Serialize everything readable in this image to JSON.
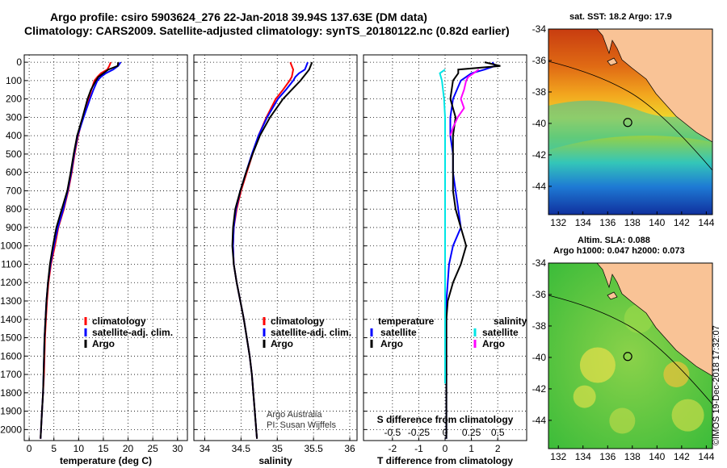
{
  "titles": {
    "line1": "Argo profile: csiro 5903624_276 22-Jan-2018 39.94S 137.63E (DM data)",
    "line2": "Climatology: CARS2009. Satellite-adjusted climatology: synTS_20180122.nc (0.82d earlier)"
  },
  "credits": {
    "line1": "Argo Australia",
    "line2": "PI: Susan Wijffels"
  },
  "stamp": "©IMOS 19-Dec-2018 17:32:07",
  "colors": {
    "climatology": "#ff0000",
    "satellite": "#0000ff",
    "argo": "#000000",
    "sat_temp": "#0000ff",
    "sat_sal": "#00e5e5",
    "argo_temp": "#000000",
    "argo_sal": "#ff00ff"
  },
  "maps": {
    "sst": {
      "title": "sat. SST: 18.2 Argo: 17.9",
      "xticks": [
        "132",
        "134",
        "136",
        "138",
        "140",
        "142",
        "144"
      ],
      "yticks": [
        "-34",
        "-36",
        "-38",
        "-40",
        "-42",
        "-44"
      ],
      "marker": {
        "lon": 137.63,
        "lat": -39.94
      }
    },
    "sla": {
      "title1": "Altim. SLA: 0.088",
      "title2": "Argo h1000: 0.047 h2000: 0.073",
      "xticks": [
        "132",
        "134",
        "136",
        "138",
        "140",
        "142",
        "144"
      ],
      "yticks": [
        "-34",
        "-36",
        "-38",
        "-40",
        "-42",
        "-44"
      ],
      "marker": {
        "lon": 137.63,
        "lat": -39.94
      }
    }
  },
  "chart_data": [
    {
      "type": "line",
      "id": "temperature",
      "xlabel": "temperature (deg C)",
      "ylabel": "",
      "xlim": [
        -1,
        32
      ],
      "ylim": [
        2060,
        -40
      ],
      "xticks": [
        "0",
        "5",
        "10",
        "15",
        "20",
        "25",
        "30"
      ],
      "yticks": [
        "0",
        "100",
        "200",
        "300",
        "400",
        "500",
        "600",
        "700",
        "800",
        "900",
        "1000",
        "1100",
        "1200",
        "1300",
        "1400",
        "1500",
        "1600",
        "1700",
        "1800",
        "1900",
        "2000"
      ],
      "legend": {
        "position": "lower-right",
        "labels": [
          "climatology",
          "satellite-adj. clim.",
          "Argo"
        ]
      },
      "series": [
        {
          "name": "climatology",
          "depth": [
            0,
            20,
            40,
            60,
            80,
            100,
            150,
            200,
            300,
            400,
            500,
            600,
            700,
            800,
            900,
            1000,
            1100,
            1200,
            1300,
            1400,
            1500,
            1600,
            1700,
            1800,
            1900,
            2000,
            2050
          ],
          "values": [
            16.5,
            16.2,
            15.8,
            14.5,
            13.8,
            13.2,
            12.6,
            12.0,
            10.9,
            9.9,
            9.2,
            8.6,
            7.9,
            7.0,
            5.9,
            5.2,
            4.4,
            3.9,
            3.6,
            3.4,
            3.2,
            3.1,
            3.0,
            2.8,
            2.6,
            2.4,
            2.3
          ]
        },
        {
          "name": "satellite-adj. clim.",
          "depth": [
            0,
            20,
            40,
            60,
            80,
            100,
            150,
            200,
            300,
            400,
            500,
            600,
            700,
            800,
            900,
            1000,
            1100,
            1200,
            1300,
            1400,
            1500,
            1600,
            1700,
            1800,
            1900,
            2000,
            2050
          ],
          "values": [
            18.5,
            18.0,
            17.0,
            15.5,
            14.5,
            13.8,
            13.0,
            12.3,
            11.0,
            9.8,
            9.1,
            8.5,
            7.8,
            6.9,
            5.8,
            5.0,
            4.3,
            3.8,
            3.5,
            3.3,
            3.1,
            3.0,
            2.9,
            2.8,
            2.6,
            2.4,
            2.3
          ]
        },
        {
          "name": "Argo",
          "depth": [
            0,
            20,
            40,
            60,
            80,
            100,
            150,
            200,
            300,
            400,
            500,
            600,
            700,
            800,
            900,
            1000,
            1100,
            1200,
            1300,
            1400,
            1500,
            1600,
            1700,
            1800,
            1900,
            2000,
            2050
          ],
          "values": [
            18.0,
            17.9,
            16.0,
            15.0,
            14.0,
            13.5,
            12.5,
            11.8,
            10.8,
            9.7,
            9.0,
            8.4,
            7.7,
            6.6,
            5.5,
            4.8,
            4.2,
            3.8,
            3.5,
            3.3,
            3.1,
            3.0,
            2.9,
            2.8,
            2.6,
            2.4,
            2.3
          ]
        }
      ]
    },
    {
      "type": "line",
      "id": "salinity",
      "xlabel": "salinity",
      "ylabel": "",
      "xlim": [
        33.85,
        36.1
      ],
      "ylim": [
        2060,
        -40
      ],
      "xticks": [
        "34",
        "34.5",
        "35",
        "35.5",
        "36"
      ],
      "legend": {
        "position": "lower-right",
        "labels": [
          "climatology",
          "satellite-adj. clim.",
          "Argo"
        ]
      },
      "series": [
        {
          "name": "climatology",
          "depth": [
            0,
            20,
            40,
            60,
            80,
            100,
            150,
            200,
            300,
            400,
            500,
            600,
            700,
            800,
            900,
            1000,
            1100,
            1200,
            1300,
            1400,
            1500,
            1600,
            1700,
            1800,
            1900,
            2000,
            2050
          ],
          "values": [
            35.18,
            35.2,
            35.22,
            35.21,
            35.2,
            35.17,
            35.08,
            34.98,
            34.85,
            34.74,
            34.66,
            34.58,
            34.5,
            34.44,
            34.4,
            34.39,
            34.4,
            34.44,
            34.49,
            34.54,
            34.58,
            34.62,
            34.65,
            34.67,
            34.69,
            34.71,
            34.72
          ]
        },
        {
          "name": "satellite-adj. clim.",
          "depth": [
            0,
            20,
            40,
            60,
            80,
            100,
            150,
            200,
            300,
            400,
            500,
            600,
            700,
            800,
            900,
            1000,
            1100,
            1200,
            1300,
            1400,
            1500,
            1600,
            1700,
            1800,
            1900,
            2000,
            2050
          ],
          "values": [
            35.42,
            35.4,
            35.38,
            35.3,
            35.25,
            35.22,
            35.12,
            35.01,
            34.86,
            34.74,
            34.65,
            34.57,
            34.49,
            34.43,
            34.4,
            34.39,
            34.4,
            34.44,
            34.49,
            34.54,
            34.58,
            34.62,
            34.65,
            34.67,
            34.69,
            34.71,
            34.72
          ]
        },
        {
          "name": "Argo",
          "depth": [
            0,
            20,
            40,
            60,
            80,
            100,
            150,
            200,
            300,
            400,
            500,
            600,
            700,
            800,
            900,
            1000,
            1100,
            1200,
            1300,
            1400,
            1500,
            1600,
            1700,
            1800,
            1900,
            2000,
            2050
          ],
          "values": [
            35.48,
            35.46,
            35.44,
            35.4,
            35.36,
            35.32,
            35.2,
            35.08,
            34.9,
            34.76,
            34.66,
            34.57,
            34.49,
            34.42,
            34.39,
            34.38,
            34.4,
            34.44,
            34.49,
            34.54,
            34.58,
            34.62,
            34.65,
            34.67,
            34.69,
            34.71,
            34.72
          ]
        }
      ]
    },
    {
      "type": "line",
      "id": "difference",
      "xlabel": "T difference from climatology",
      "top_label": "S difference from climatology",
      "ylabel": "",
      "xlim": [
        -3.1,
        3.1
      ],
      "ylim": [
        2060,
        -40
      ],
      "xticks": [
        "-2",
        "-1",
        "0",
        "1",
        "2"
      ],
      "xticks_top": [
        "-0.5",
        "-0.25",
        "0",
        "0.25",
        "0.5"
      ],
      "legend": {
        "position": "lower-left and lower-right",
        "groups": [
          {
            "heading": "temperature",
            "labels": [
              "satellite",
              "Argo"
            ]
          },
          {
            "heading": "salinity",
            "labels": [
              "satellite",
              "Argo"
            ]
          }
        ]
      },
      "series": [
        {
          "name": "temperature satellite",
          "depth": [
            0,
            20,
            40,
            60,
            100,
            200,
            300,
            400,
            500,
            600,
            700,
            800,
            900,
            1000,
            1100,
            1200,
            1300,
            1400,
            1500,
            1600,
            1700,
            1800,
            1900,
            2000,
            2050
          ],
          "values": [
            1.8,
            1.9,
            1.5,
            1.0,
            0.6,
            0.3,
            0.2,
            0.2,
            0.3,
            0.3,
            0.4,
            0.5,
            0.6,
            0.3,
            0.15,
            0.1,
            0.05,
            0.05,
            0.05,
            0.05,
            0.05,
            0.05,
            0.05,
            0.05,
            0.05
          ]
        },
        {
          "name": "temperature Argo",
          "depth": [
            0,
            20,
            40,
            60,
            100,
            200,
            300,
            400,
            500,
            600,
            700,
            800,
            900,
            1000,
            1100,
            1200,
            1300,
            1400,
            1500,
            1600,
            1700,
            1800,
            1900,
            2000,
            2050
          ],
          "values": [
            1.5,
            2.1,
            0.5,
            0.5,
            0.3,
            0.2,
            0.4,
            0.3,
            0.3,
            0.3,
            0.3,
            0.4,
            0.6,
            0.8,
            0.6,
            0.3,
            0.1,
            0.05,
            0.05,
            0.05,
            0.05,
            0.05,
            0.05,
            0.05,
            0.05
          ]
        },
        {
          "name": "salinity satellite",
          "depth": [
            40,
            60,
            100,
            200,
            300,
            400,
            500,
            600,
            700,
            800,
            900,
            1000,
            1100,
            1200,
            1300,
            1400,
            1500,
            1600,
            1700,
            1750
          ],
          "values": [
            0.0,
            -0.05,
            -0.03,
            -0.01,
            0.0,
            0.0,
            0.0,
            0.0,
            0.0,
            0.0,
            0.0,
            0.0,
            0.0,
            0.0,
            0.0,
            0.0,
            0.0,
            0.0,
            0.0,
            0.0
          ]
        },
        {
          "name": "salinity Argo",
          "depth": [
            40,
            60,
            80,
            100,
            150,
            200,
            250,
            300,
            350,
            400
          ],
          "values": [
            0.32,
            0.27,
            0.22,
            0.2,
            0.18,
            0.15,
            0.18,
            0.12,
            0.08,
            0.05
          ]
        }
      ]
    }
  ]
}
